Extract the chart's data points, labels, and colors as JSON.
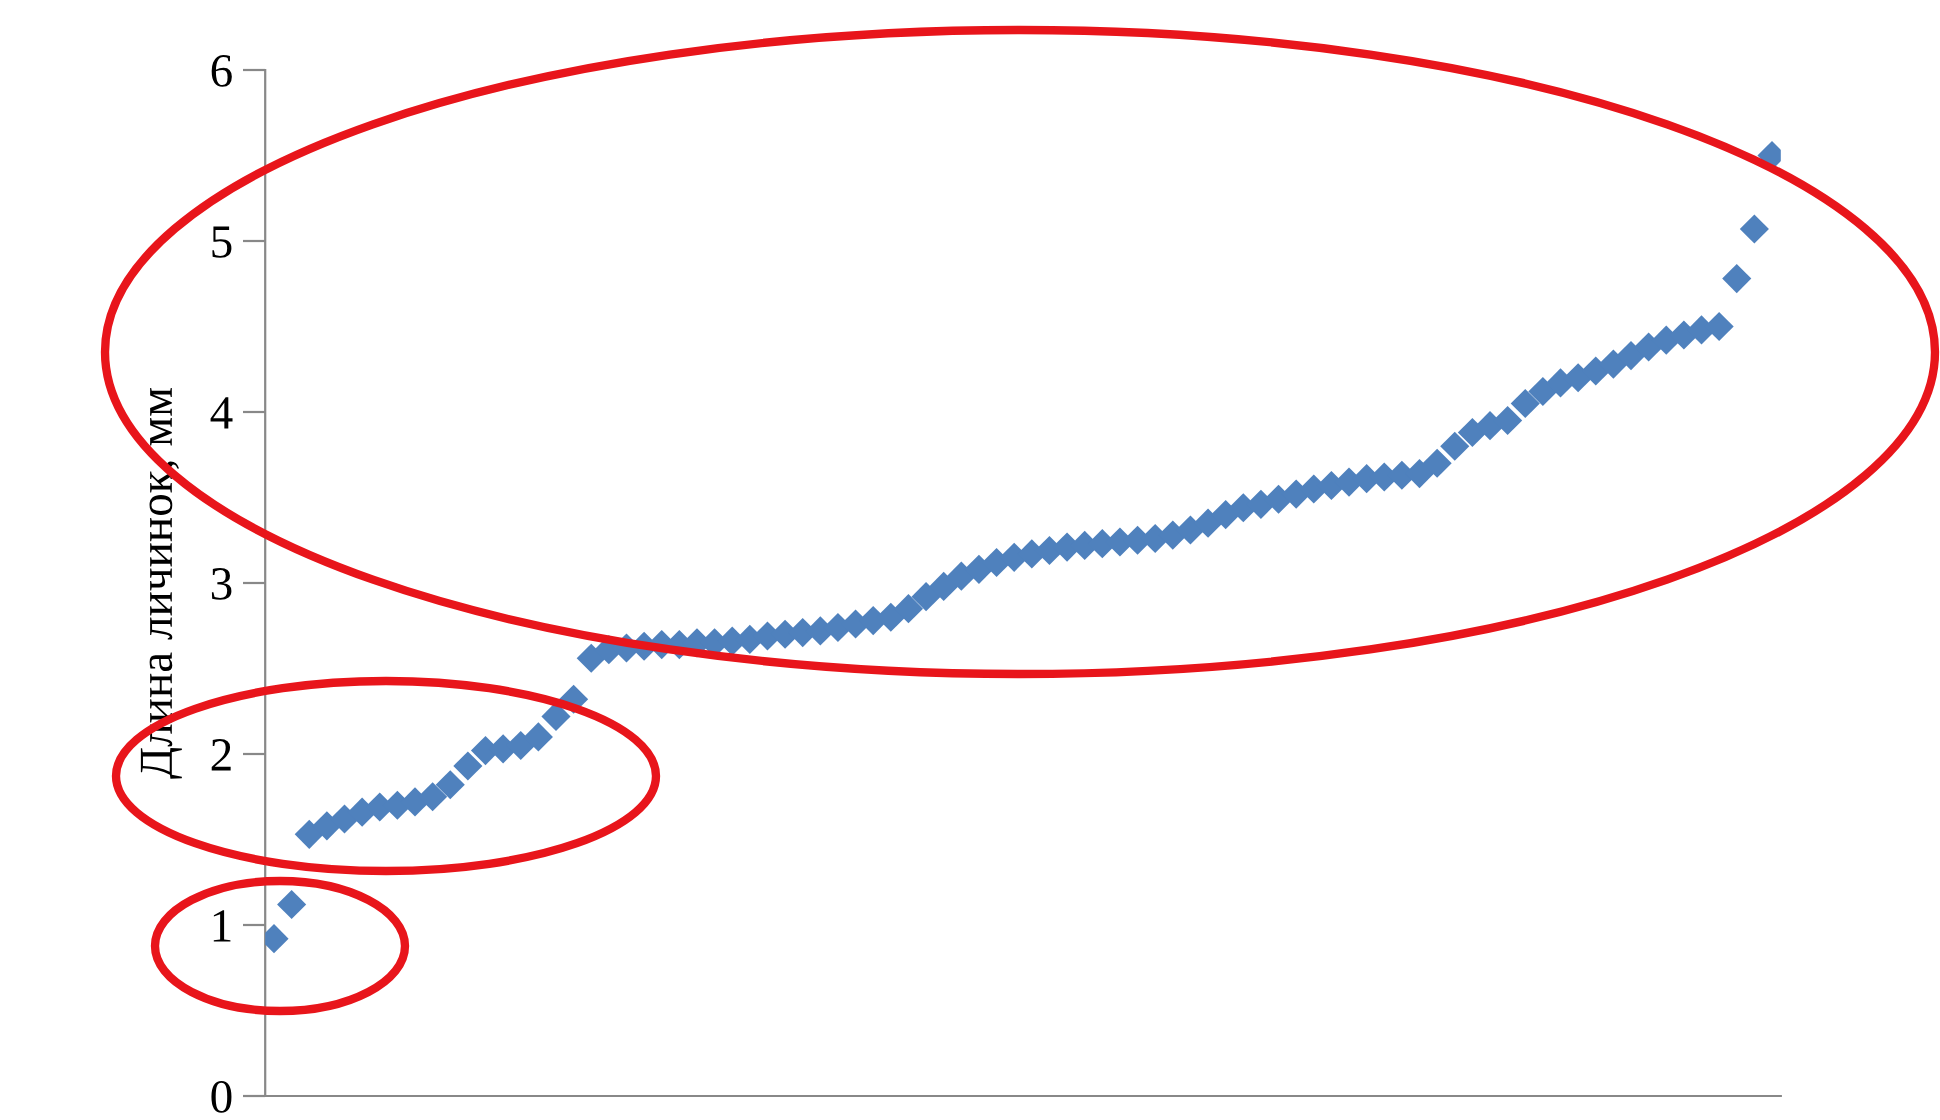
{
  "chart_data": {
    "type": "scatter",
    "ylabel": "Длина личинок, мм",
    "categories": [
      null,
      null,
      null,
      null,
      null,
      null,
      null,
      null,
      null,
      null,
      null,
      null,
      null,
      null,
      null,
      null,
      null,
      null,
      null,
      null,
      null,
      null,
      null,
      null,
      null,
      null,
      null,
      null,
      null,
      null,
      null,
      null,
      null,
      null,
      null,
      null,
      null,
      null,
      null,
      null,
      null,
      null,
      null,
      null,
      null,
      null,
      null,
      null,
      null,
      null,
      null,
      null,
      null,
      null,
      null,
      null,
      null,
      null,
      null,
      null,
      null,
      null,
      null,
      null,
      null,
      null,
      null,
      null,
      null,
      null,
      null,
      null,
      null,
      null,
      null,
      null,
      null,
      null,
      null,
      null,
      null,
      null,
      null,
      null,
      null,
      null
    ],
    "series": [
      {
        "color": "#4f81bd",
        "values": [
          0.92,
          1.12,
          1.53,
          1.58,
          1.62,
          1.66,
          1.69,
          1.7,
          1.72,
          1.75,
          1.82,
          1.93,
          2.02,
          2.03,
          2.05,
          2.1,
          2.22,
          2.32,
          2.56,
          2.61,
          2.62,
          2.63,
          2.64,
          2.64,
          2.65,
          2.65,
          2.66,
          2.67,
          2.69,
          2.7,
          2.71,
          2.72,
          2.74,
          2.76,
          2.78,
          2.8,
          2.85,
          2.92,
          2.98,
          3.04,
          3.08,
          3.12,
          3.15,
          3.17,
          3.19,
          3.21,
          3.22,
          3.23,
          3.24,
          3.25,
          3.26,
          3.28,
          3.31,
          3.35,
          3.4,
          3.44,
          3.46,
          3.49,
          3.52,
          3.55,
          3.57,
          3.59,
          3.61,
          3.62,
          3.63,
          3.64,
          3.7,
          3.8,
          3.88,
          3.92,
          3.95,
          4.05,
          4.12,
          4.17,
          4.2,
          4.24,
          4.28,
          4.33,
          4.38,
          4.42,
          4.45,
          4.48,
          4.5,
          4.78,
          5.07,
          5.5
        ]
      }
    ],
    "marker": "diamond",
    "ylim": [
      0,
      6
    ],
    "yticks": [
      0,
      1,
      2,
      3,
      4,
      5,
      6
    ],
    "tick_labels": "y",
    "grid": false,
    "legend": false
  }
}
